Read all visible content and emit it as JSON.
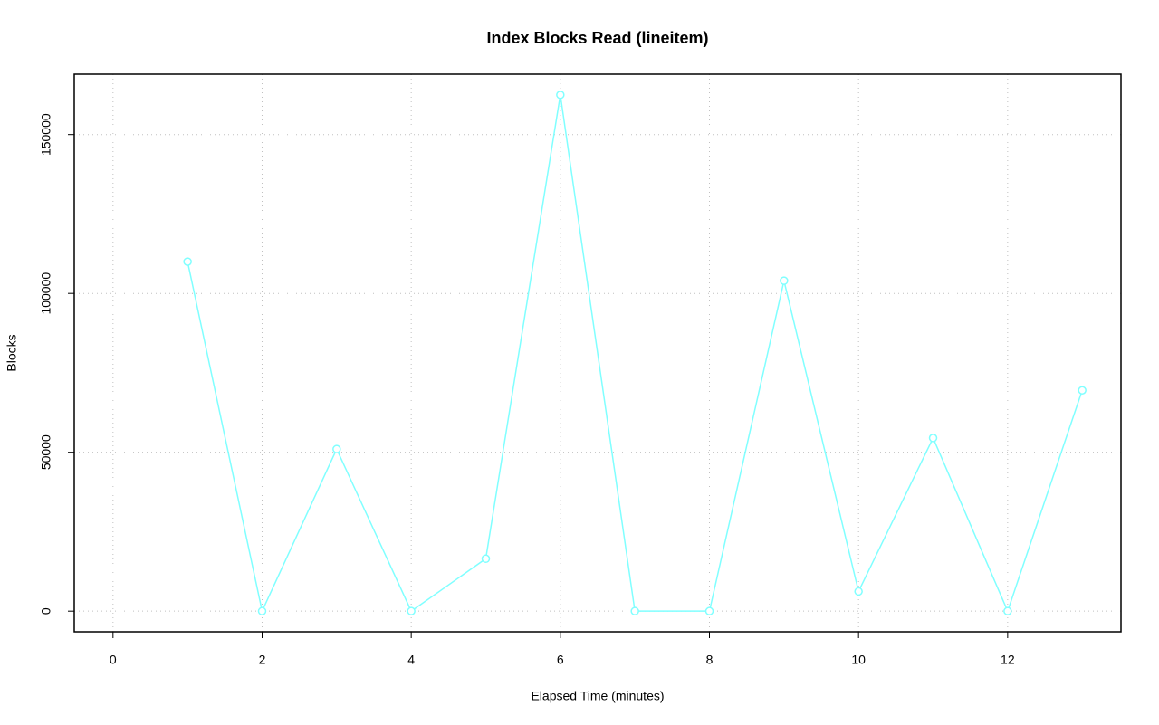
{
  "chart_data": {
    "type": "line",
    "title": "Index Blocks Read (lineitem)",
    "x_label": "Elapsed Time (minutes)",
    "y_label": "Blocks",
    "x": [
      1,
      2,
      3,
      4,
      5,
      6,
      7,
      8,
      9,
      10,
      11,
      12,
      13
    ],
    "series": [
      {
        "name": "Blocks",
        "color": "#80ffff",
        "values": [
          110000,
          0,
          51000,
          0,
          16500,
          162500,
          0,
          0,
          104000,
          6200,
          54500,
          0,
          69500
        ]
      }
    ],
    "xlim": [
      -0.52,
      13.52
    ],
    "xticks": [
      0,
      2,
      4,
      6,
      8,
      10,
      12
    ],
    "ylim": [
      -6500,
      169000
    ],
    "yticks": [
      0,
      50000,
      100000,
      150000
    ],
    "grid": true
  }
}
